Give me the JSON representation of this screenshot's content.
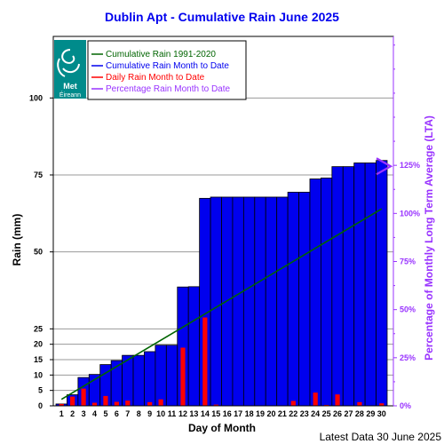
{
  "chart_data": {
    "type": "bar",
    "title": "Dublin Apt - Cumulative Rain June   2025",
    "xlabel": "Day of Month",
    "ylabel": "Rain (mm)",
    "y2label": "Percentage  of Monthly Long Term Average (LTA)",
    "ylim": [
      0,
      120
    ],
    "y2lim": [
      0,
      192
    ],
    "grid": true,
    "legend_position": "top-left",
    "categories": [
      "1",
      "2",
      "3",
      "4",
      "5",
      "6",
      "7",
      "8",
      "9",
      "10",
      "11",
      "12",
      "13",
      "14",
      "15",
      "16",
      "17",
      "18",
      "19",
      "20",
      "21",
      "22",
      "23",
      "24",
      "25",
      "26",
      "27",
      "28",
      "29",
      "30"
    ],
    "y_ticks": [
      0,
      5,
      10,
      15,
      20,
      25,
      50,
      75,
      100
    ],
    "y_tick_labels": [
      "0",
      "5",
      "10",
      "15",
      "20",
      "25",
      "50",
      "75",
      "100"
    ],
    "y2_ticks": [
      0,
      25,
      50,
      75,
      100,
      125
    ],
    "y2_tick_labels": [
      "0%",
      "25%",
      "50%",
      "75%",
      "100%",
      "125%"
    ],
    "series": [
      {
        "name": "Cumulative Rain Month to Date",
        "color": "#0000ee",
        "values": [
          0.6,
          3.6,
          9.2,
          10.2,
          13.4,
          14.7,
          16.4,
          16.4,
          17.6,
          19.7,
          19.7,
          38.6,
          38.7,
          67.4,
          67.8,
          67.8,
          67.8,
          67.8,
          67.8,
          67.8,
          67.8,
          69.4,
          69.4,
          73.7,
          74.0,
          77.7,
          77.7,
          78.9,
          78.9,
          79.7
        ]
      },
      {
        "name": "Daily Rain Month to Date",
        "color": "#ff0000",
        "values": [
          0.6,
          3.0,
          5.6,
          1.0,
          3.2,
          1.3,
          1.7,
          0.0,
          1.2,
          2.1,
          0.0,
          18.9,
          0.1,
          28.7,
          0.4,
          0.0,
          0.0,
          0.0,
          0.0,
          0.0,
          0.0,
          1.6,
          0.0,
          4.3,
          0.3,
          3.7,
          0.0,
          1.2,
          0.0,
          0.8
        ]
      },
      {
        "name": "Cumulative Rain 1991-2020",
        "color": "#006400",
        "start_day": 1,
        "start_value": 2.1,
        "end_day": 30,
        "end_value": 64.0
      },
      {
        "name": "Percentage Rain Month to Date",
        "color": "#9933ff",
        "marker_percent": 124.5
      }
    ]
  },
  "logo": {
    "line1": "Met",
    "line2": "Éireann"
  },
  "footer": {
    "latest": "Latest Data 30 June 2025"
  }
}
